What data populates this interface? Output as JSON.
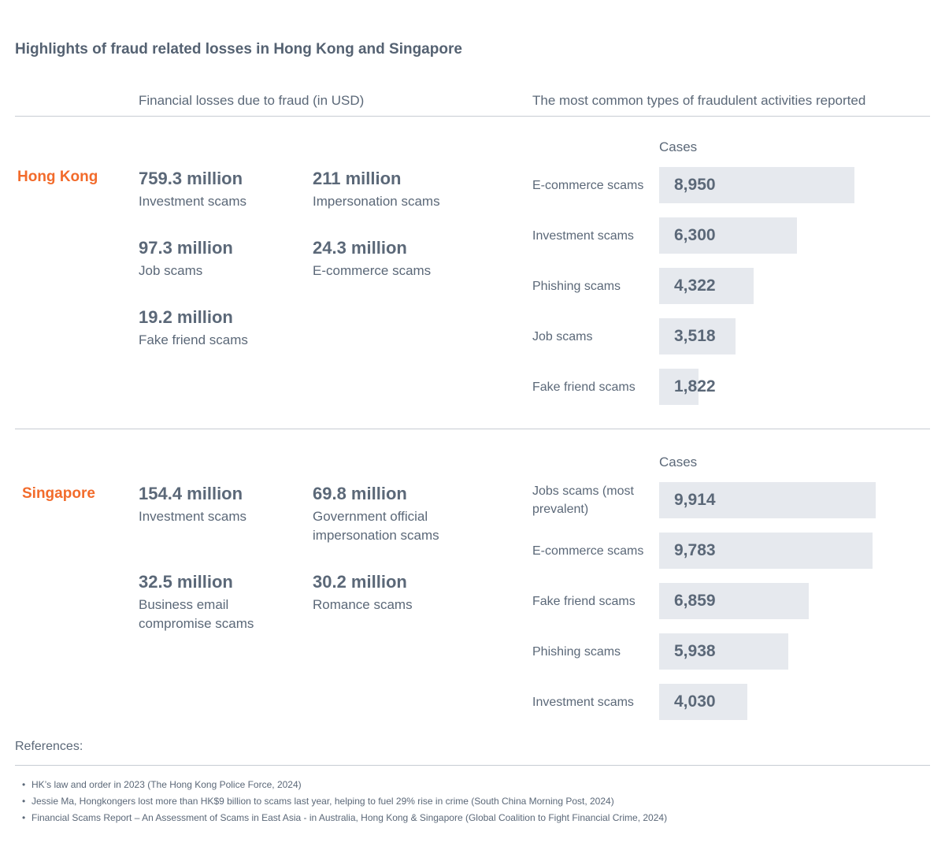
{
  "title": "Highlights of fraud related losses in Hong Kong and Singapore",
  "headers": {
    "losses": "Financial losses due to fraud (in USD)",
    "types": "The most common types of fraudulent activities reported"
  },
  "hong_kong": {
    "name": "Hong Kong",
    "losses": [
      {
        "amount": "759.3 million",
        "label": "Investment scams"
      },
      {
        "amount": "211 million",
        "label": "Impersonation scams"
      },
      {
        "amount": "97.3 million",
        "label": "Job scams"
      },
      {
        "amount": "24.3 million",
        "label": "E-commerce scams"
      },
      {
        "amount": "19.2 million",
        "label": "Fake friend scams"
      }
    ],
    "cases_label": "Cases"
  },
  "singapore": {
    "name": "Singapore",
    "losses": [
      {
        "amount": "154.4 million",
        "label": "Investment scams"
      },
      {
        "amount": "69.8 million",
        "label": "Government official impersonation scams"
      },
      {
        "amount": "32.5 million",
        "label": "Business email compromise scams"
      },
      {
        "amount": "30.2 million",
        "label": "Romance scams"
      }
    ],
    "cases_label": "Cases"
  },
  "references": {
    "title": "References:",
    "items": [
      "HK’s law and order in 2023 (The Hong Kong Police Force, 2024)",
      "Jessie Ma, Hongkongers lost more than HK$9 billion to scams last year, helping to fuel 29% rise in crime (South China Morning Post, 2024)",
      "Financial Scams Report – An Assessment of Scams in East Asia - in Australia, Hong Kong & Singapore (Global Coalition to Fight Financial Crime, 2024)"
    ]
  },
  "colors": {
    "accent": "#f26b2b",
    "text": "#5b6878",
    "bar": "#e6e9ee",
    "rule": "#c7ccd3"
  },
  "chart_data": [
    {
      "type": "bar",
      "orientation": "horizontal",
      "ylabel": "Cases",
      "categories": [
        "E-commerce scams",
        "Investment scams",
        "Phishing scams",
        "Job scams",
        "Fake friend scams"
      ],
      "values": [
        8950,
        6300,
        4322,
        3518,
        1822
      ],
      "value_labels": [
        "8,950",
        "6,300",
        "4,322",
        "3,518",
        "1,822"
      ]
    },
    {
      "type": "bar",
      "orientation": "horizontal",
      "ylabel": "Cases",
      "categories": [
        "Jobs scams (most prevalent)",
        "E-commerce scams",
        "Fake friend scams",
        "Phishing scams",
        "Investment scams"
      ],
      "values": [
        9914,
        9783,
        6859,
        5938,
        4030
      ],
      "value_labels": [
        "9,914",
        "9,783",
        "6,859",
        "5,938",
        "4,030"
      ]
    }
  ]
}
